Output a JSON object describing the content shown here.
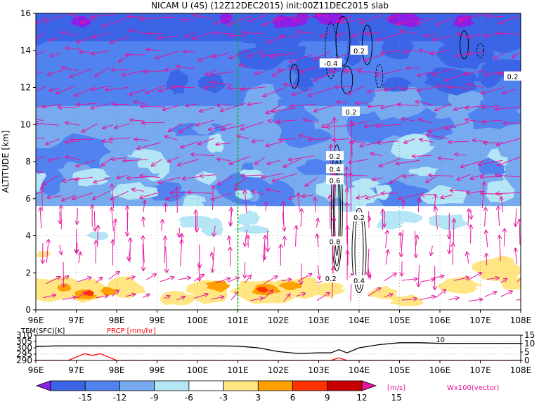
{
  "chart_data": [
    {
      "type": "heatmap",
      "title": "NICAM U (4S) (12Z12DEC2015) init:00Z11DEC2015 slab",
      "ylabel": "ALTITUDE [km]",
      "xlim": [
        96,
        108
      ],
      "ylim": [
        0,
        16
      ],
      "x_ticks": [
        "96E",
        "97E",
        "98E",
        "99E",
        "100E",
        "101E",
        "102E",
        "103E",
        "104E",
        "105E",
        "106E",
        "107E",
        "108E"
      ],
      "y_ticks": [
        "0",
        "2",
        "4",
        "6",
        "8",
        "10",
        "12",
        "14",
        "16"
      ],
      "grid": true,
      "marker_line_lon": 101.0,
      "contour_labels": [
        {
          "text": "0.2",
          "lon": 104.0,
          "alt": 14.0
        },
        {
          "text": "-0.4",
          "lon": 103.3,
          "alt": 13.3
        },
        {
          "text": "0.2",
          "lon": 107.8,
          "alt": 12.6
        },
        {
          "text": "0.2",
          "lon": 103.8,
          "alt": 10.7
        },
        {
          "text": "0.2",
          "lon": 103.4,
          "alt": 8.3
        },
        {
          "text": "0.4",
          "lon": 103.4,
          "alt": 7.6
        },
        {
          "text": "0.6",
          "lon": 103.4,
          "alt": 7.0
        },
        {
          "text": "0.2",
          "lon": 104.0,
          "alt": 5.0
        },
        {
          "text": "0.8",
          "lon": 103.4,
          "alt": 3.7
        },
        {
          "text": "0.2",
          "lon": 103.3,
          "alt": 1.7
        },
        {
          "text": "0.4",
          "lon": 104.0,
          "alt": 1.6
        }
      ]
    },
    {
      "type": "line",
      "labels": {
        "left": "TEM(SFC)[K]",
        "right": "PRCP [mm/hr]"
      },
      "xlim": [
        96,
        108
      ],
      "x_ticks": [
        "96E",
        "97E",
        "98E",
        "99E",
        "100E",
        "101E",
        "102E",
        "103E",
        "104E",
        "105E",
        "106E",
        "107E",
        "108E"
      ],
      "left_ticks": [
        "290",
        "295",
        "300",
        "305",
        "310"
      ],
      "left_ylim": [
        290,
        310
      ],
      "right_ticks": [
        "0",
        "5",
        "10",
        "15"
      ],
      "right_ylim": [
        0,
        15
      ],
      "inline_label": "10",
      "series": [
        {
          "color": "#000000",
          "x": [
            96,
            96.5,
            97,
            97.5,
            98,
            98.5,
            99,
            99.5,
            100,
            100.5,
            101,
            101.5,
            102,
            102.5,
            103,
            103.3,
            103.5,
            103.7,
            104,
            104.5,
            105,
            105.5,
            106,
            106.5,
            107,
            107.5,
            108
          ],
          "values": [
            301,
            301.5,
            301.5,
            301.5,
            301.5,
            301.5,
            301.5,
            301.5,
            301.5,
            301.5,
            301.3,
            300,
            297,
            295.5,
            296,
            296,
            298.5,
            296,
            300,
            302.5,
            304,
            304,
            303.5,
            303.5,
            303.5,
            303.5,
            303.5
          ]
        },
        {
          "color": "#ff0000",
          "x": [
            96,
            96.8,
            97.0,
            97.2,
            97.4,
            97.6,
            97.8,
            98.0,
            98.2,
            101,
            103.3,
            103.5,
            103.7,
            108
          ],
          "values": [
            0,
            0,
            2,
            4,
            3,
            4,
            2,
            0,
            0,
            0,
            0,
            1.5,
            0,
            0
          ]
        }
      ]
    }
  ],
  "colorbar": {
    "ticks": [
      "-15",
      "-12",
      "-9",
      "-6",
      "-3",
      "3",
      "6",
      "9",
      "12",
      "15"
    ],
    "unit": "[m/s]",
    "colors": [
      "#8c1ee6",
      "#3c64e6",
      "#5082f0",
      "#78aaf0",
      "#b4e6f5",
      "#ffffff",
      "#ffe682",
      "#ffa000",
      "#ff3200",
      "#c80000",
      "#e6149b"
    ]
  },
  "vector_label": "Wx100(vector)",
  "colors": {
    "vector": "#e6149b",
    "marker_line": "#00b400",
    "prcp": "#ff0000"
  }
}
